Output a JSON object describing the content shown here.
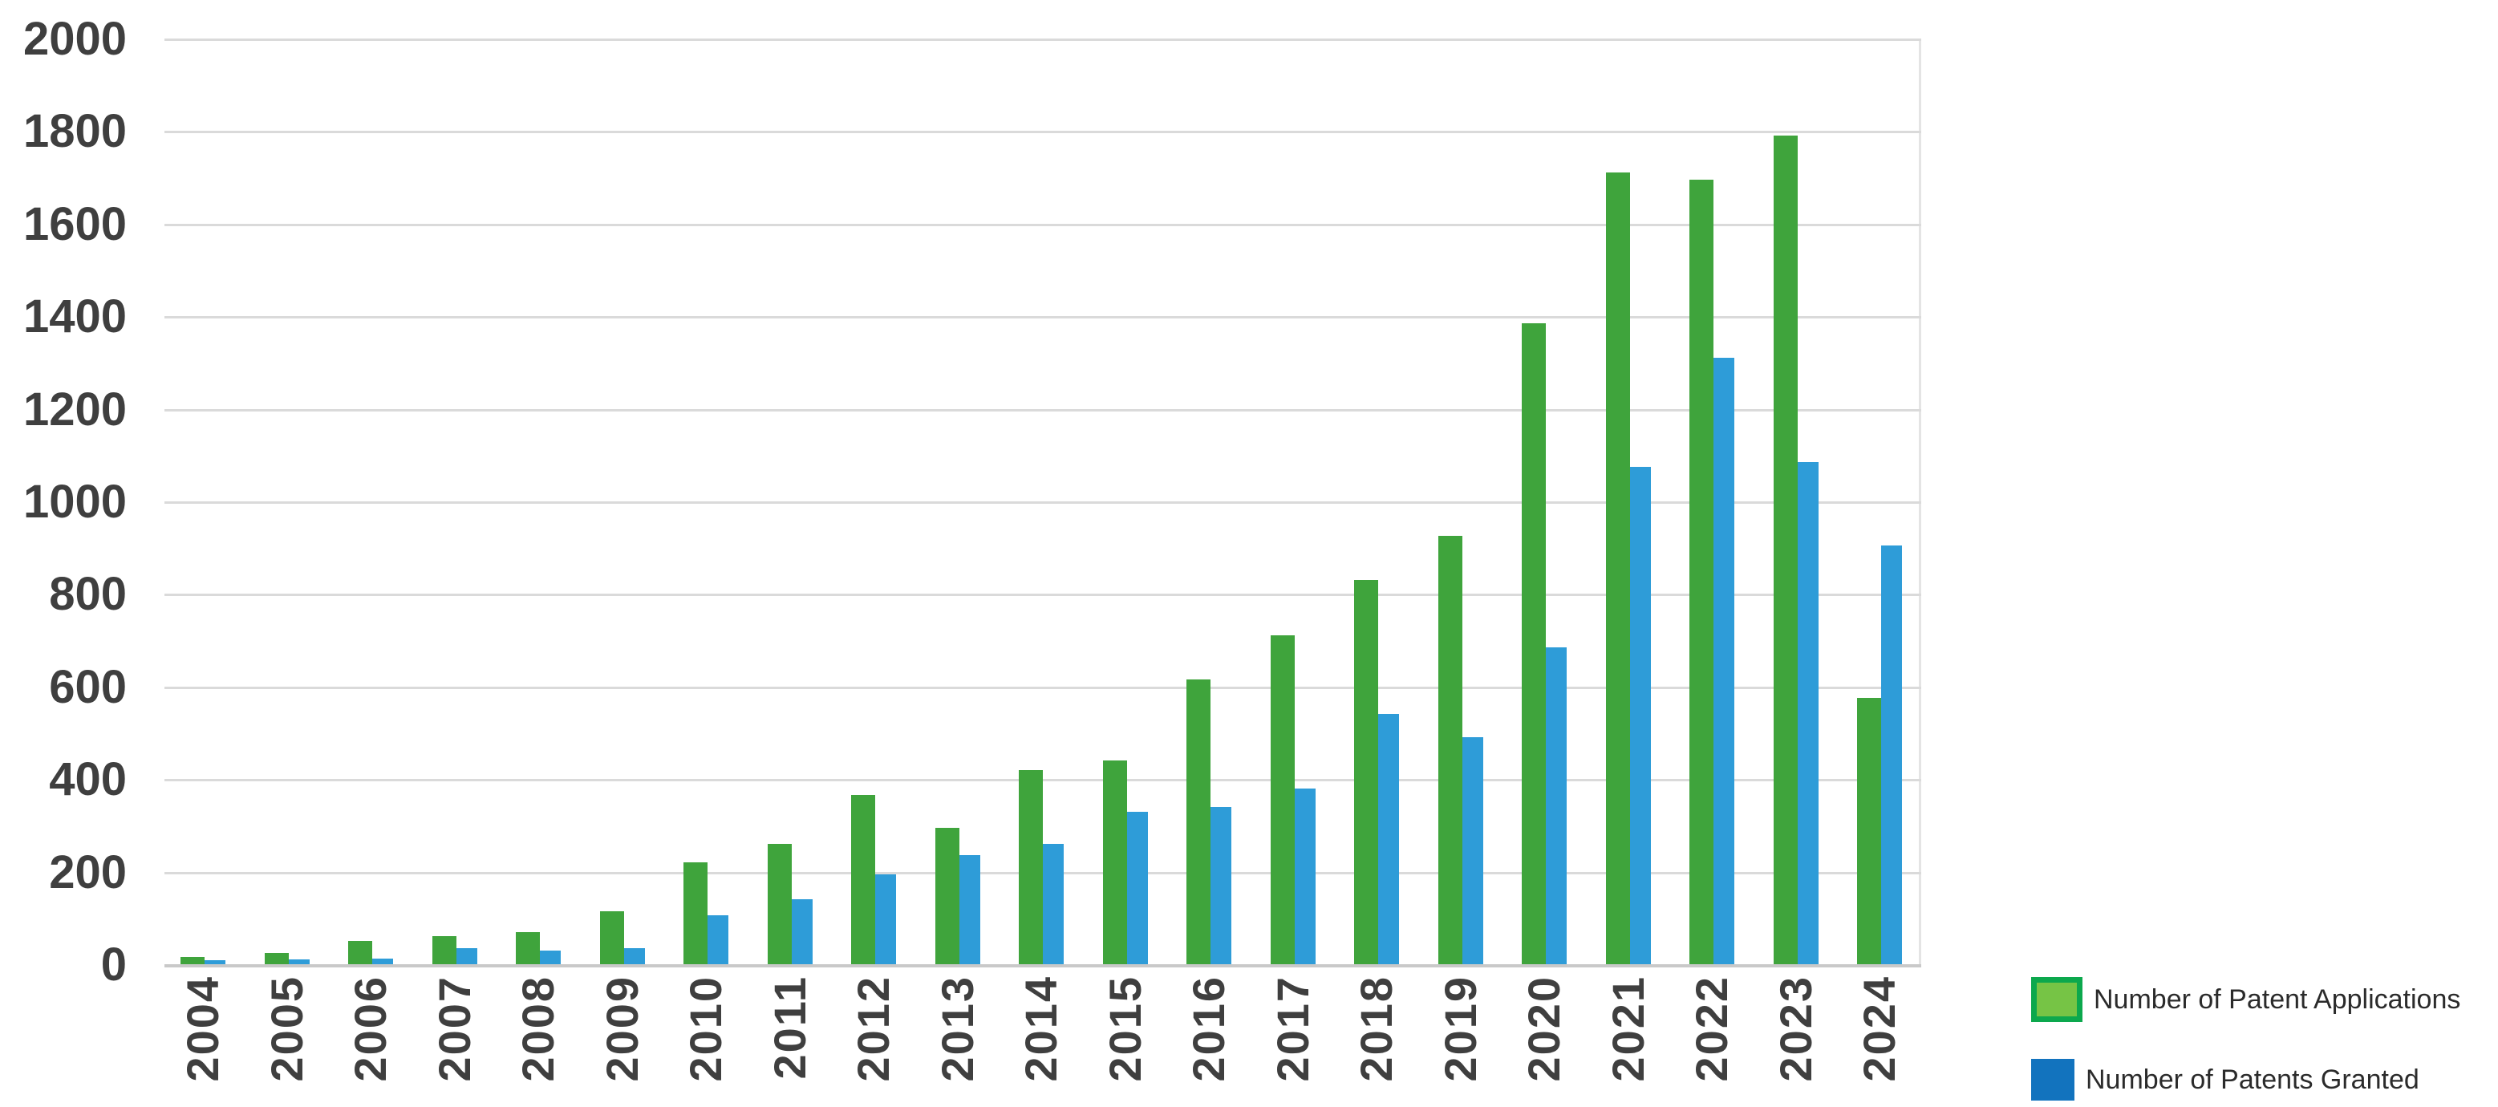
{
  "chart_data": {
    "type": "bar",
    "title": "",
    "categories": [
      "2004",
      "2005",
      "2006",
      "2007",
      "2008",
      "2009",
      "2010",
      "2011",
      "2012",
      "2013",
      "2014",
      "2015",
      "2016",
      "2017",
      "2018",
      "2019",
      "2020",
      "2021",
      "2022",
      "2023",
      "2024"
    ],
    "series": [
      {
        "name": "Number of Patent Applications",
        "bar_color": "#3fa43c",
        "legend_fill": "#76c445",
        "legend_border": "#0ca84d",
        "values": [
          15,
          25,
          50,
          60,
          70,
          115,
          220,
          260,
          365,
          295,
          420,
          440,
          615,
          710,
          830,
          925,
          1385,
          1710,
          1695,
          1790,
          575
        ]
      },
      {
        "name": "Number of Patents Granted",
        "bar_color": "#2e9cd8",
        "legend_fill": "#1273be",
        "legend_border": "#1273be",
        "values": [
          8,
          10,
          12,
          35,
          30,
          35,
          105,
          140,
          195,
          235,
          260,
          330,
          340,
          380,
          540,
          490,
          685,
          1075,
          1310,
          1085,
          905
        ]
      }
    ],
    "xlabel": "",
    "ylabel": "",
    "ylim": [
      0,
      2000
    ],
    "ytick_interval": 200,
    "yticks": [
      "0",
      "200",
      "400",
      "600",
      "800",
      "1000",
      "1200",
      "1400",
      "1600",
      "1800",
      "2000"
    ],
    "grid": "horizontal",
    "legend_position": "bottom-right",
    "x_tick_rotation": 90
  },
  "colors": {
    "gridline": "#dadada",
    "baseline": "#c9c9c9",
    "axis_text": "#3f3f3f",
    "legend_text": "#2b2b2b",
    "background": "#ffffff"
  }
}
